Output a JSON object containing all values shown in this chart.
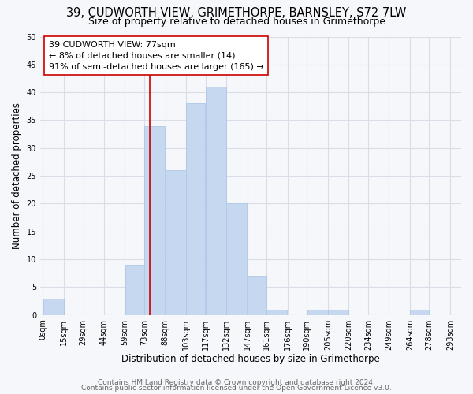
{
  "title": "39, CUDWORTH VIEW, GRIMETHORPE, BARNSLEY, S72 7LW",
  "subtitle": "Size of property relative to detached houses in Grimethorpe",
  "xlabel": "Distribution of detached houses by size in Grimethorpe",
  "ylabel": "Number of detached properties",
  "bin_edges": [
    0,
    15,
    29,
    44,
    59,
    73,
    88,
    103,
    117,
    132,
    147,
    161,
    176,
    190,
    205,
    220,
    234,
    249,
    264,
    278,
    293
  ],
  "bin_labels": [
    "0sqm",
    "15sqm",
    "29sqm",
    "44sqm",
    "59sqm",
    "73sqm",
    "88sqm",
    "103sqm",
    "117sqm",
    "132sqm",
    "147sqm",
    "161sqm",
    "176sqm",
    "190sqm",
    "205sqm",
    "220sqm",
    "234sqm",
    "249sqm",
    "264sqm",
    "278sqm",
    "293sqm"
  ],
  "counts": [
    3,
    0,
    0,
    0,
    9,
    34,
    26,
    38,
    41,
    20,
    7,
    1,
    0,
    1,
    1,
    0,
    0,
    0,
    1,
    0
  ],
  "bar_color": "#c5d8f0",
  "bar_edge_color": "#adc8e8",
  "property_value": 77,
  "vline_color": "#cc0000",
  "annotation_line1": "39 CUDWORTH VIEW: 77sqm",
  "annotation_line2": "← 8% of detached houses are smaller (14)",
  "annotation_line3": "91% of semi-detached houses are larger (165) →",
  "annotation_box_color": "#ffffff",
  "annotation_box_edge": "#cc0000",
  "ylim": [
    0,
    50
  ],
  "yticks": [
    0,
    5,
    10,
    15,
    20,
    25,
    30,
    35,
    40,
    45,
    50
  ],
  "footer1": "Contains HM Land Registry data © Crown copyright and database right 2024.",
  "footer2": "Contains public sector information licensed under the Open Government Licence v3.0.",
  "bg_color": "#f5f7fa",
  "plot_bg_color": "#f5f7fa",
  "grid_color": "#d8dde8",
  "title_fontsize": 10.5,
  "subtitle_fontsize": 9,
  "axis_label_fontsize": 8.5,
  "tick_fontsize": 7,
  "annotation_fontsize": 8,
  "footer_fontsize": 6.5
}
